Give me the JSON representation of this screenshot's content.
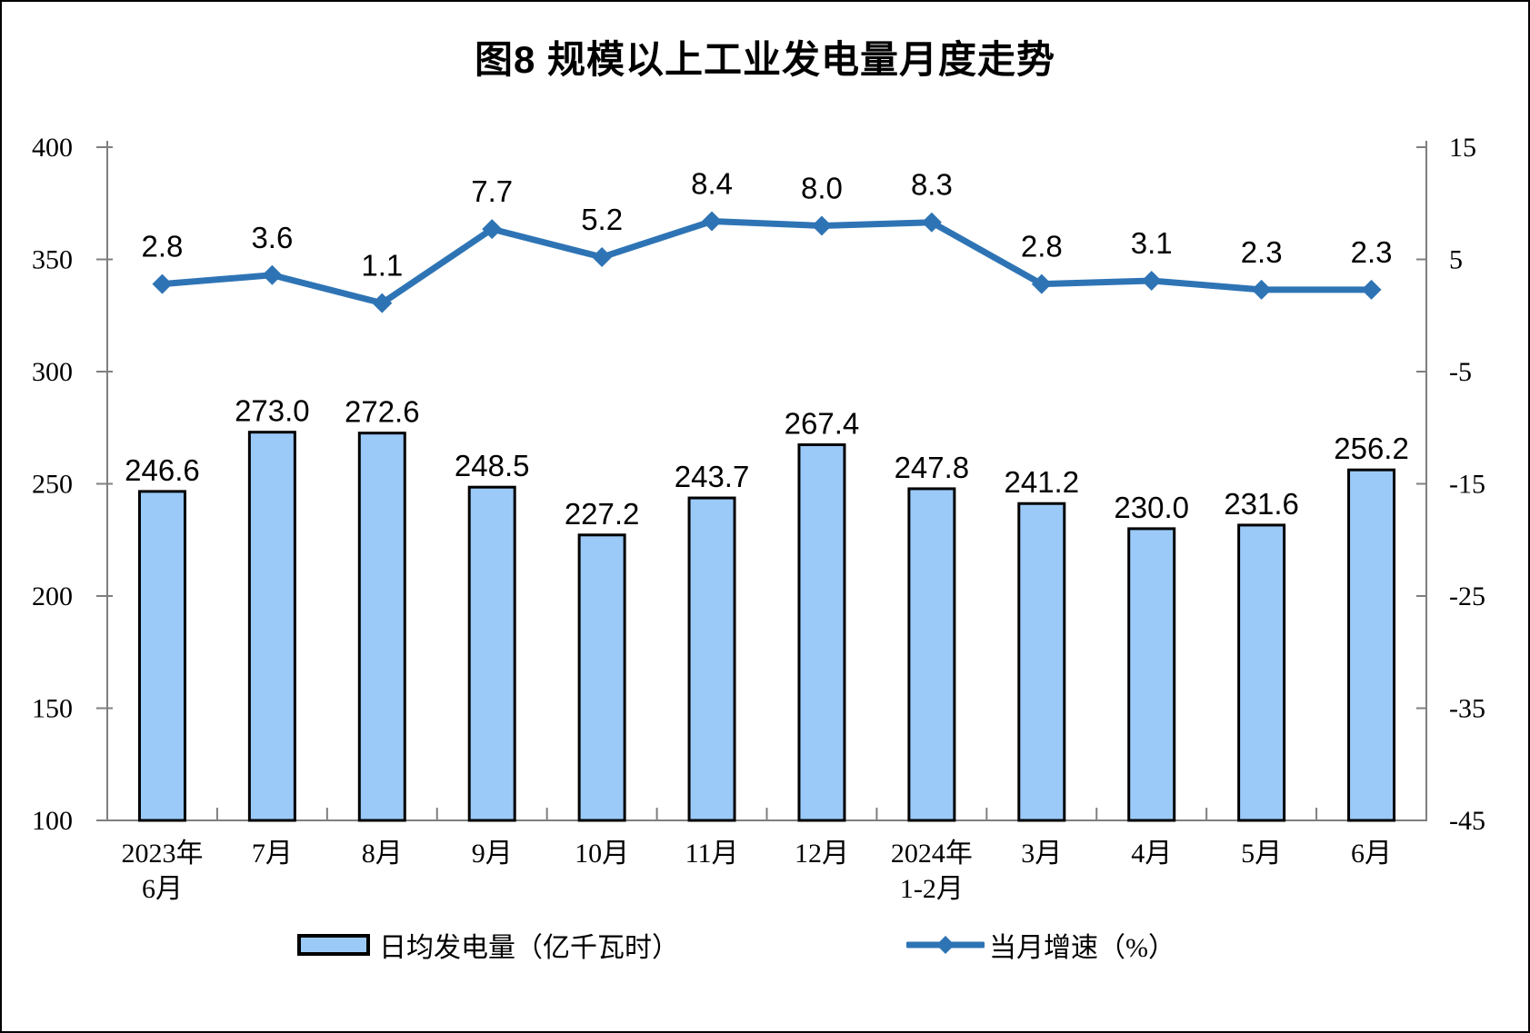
{
  "title": "图8 规模以上工业发电量月度走势",
  "chart_data": {
    "type": "bar",
    "title": "图8 规模以上工业发电量月度走势",
    "categories": [
      [
        "2023年",
        "6月"
      ],
      [
        "7月"
      ],
      [
        "8月"
      ],
      [
        "9月"
      ],
      [
        "10月"
      ],
      [
        "11月"
      ],
      [
        "12月"
      ],
      [
        "2024年",
        "1-2月"
      ],
      [
        "3月"
      ],
      [
        "4月"
      ],
      [
        "5月"
      ],
      [
        "6月"
      ]
    ],
    "series": [
      {
        "name": "日均发电量（亿千瓦时）",
        "type": "bar",
        "axis": "left",
        "values": [
          246.6,
          273.0,
          272.6,
          248.5,
          227.2,
          243.7,
          267.4,
          247.8,
          241.2,
          230.0,
          231.6,
          256.2
        ]
      },
      {
        "name": "当月增速（%）",
        "type": "line",
        "axis": "right",
        "values": [
          2.8,
          3.6,
          1.1,
          7.7,
          5.2,
          8.4,
          8.0,
          8.3,
          2.8,
          3.1,
          2.3,
          2.3
        ]
      }
    ],
    "left_axis": {
      "min": 100,
      "max": 400,
      "ticks": [
        400,
        350,
        300,
        250,
        200,
        150,
        100
      ]
    },
    "right_axis": {
      "min": -45,
      "max": 15,
      "ticks": [
        15,
        5,
        -5,
        -15,
        -25,
        -35,
        -45
      ]
    },
    "grid": false,
    "legend_position": "bottom",
    "colors": {
      "bar_fill": "#9BCAF9",
      "bar_border": "#000000",
      "line": "#2E74B5",
      "axis": "#7F7F7F",
      "text": "#000000"
    },
    "legend": {
      "bar_label": "日均发电量（亿千瓦时）",
      "line_label": "当月增速（%）"
    }
  }
}
